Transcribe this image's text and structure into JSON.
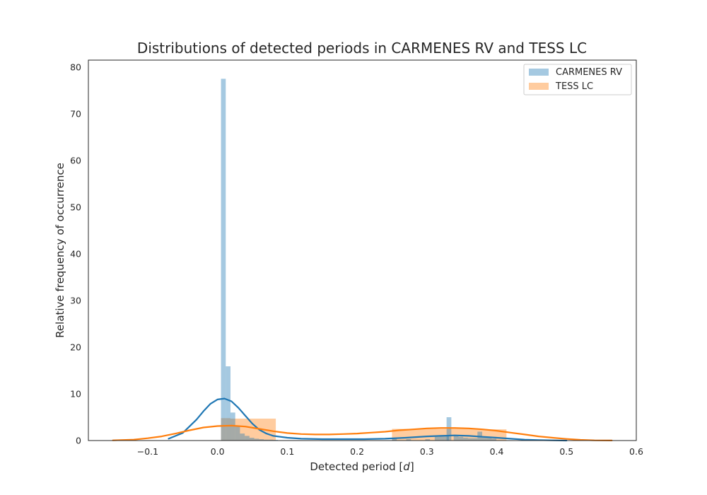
{
  "chart_data": {
    "type": "histogram",
    "title": "Distributions of detected periods in CARMENES RV and TESS LC",
    "xlabel": "Detected period [d]",
    "xlabel_text": "Detected period [",
    "xlabel_var": "d",
    "xlabel_end": "]",
    "ylabel": "Relative frequency of occurrence",
    "xlim": [
      -0.185,
      0.6
    ],
    "ylim": [
      0,
      81.5
    ],
    "xticks": [
      -0.1,
      0.0,
      0.1,
      0.2,
      0.3,
      0.4,
      0.5,
      0.6
    ],
    "xtick_labels": [
      "−0.1",
      "0.0",
      "0.1",
      "0.2",
      "0.3",
      "0.4",
      "0.5",
      "0.6"
    ],
    "yticks": [
      0,
      10,
      20,
      30,
      40,
      50,
      60,
      70,
      80
    ],
    "ytick_labels": [
      "0",
      "10",
      "20",
      "30",
      "40",
      "50",
      "60",
      "70",
      "80"
    ],
    "grid": false,
    "legend_position": "top-right",
    "series": [
      {
        "name": "CARMENES RV",
        "color": "#1f77b4",
        "bin_width": 0.0068,
        "bins": [
          {
            "x0": 0.005,
            "h": 77.5
          },
          {
            "x0": 0.0118,
            "h": 15.9
          },
          {
            "x0": 0.0186,
            "h": 6.0
          },
          {
            "x0": 0.0254,
            "h": 3.0
          },
          {
            "x0": 0.0322,
            "h": 1.5
          },
          {
            "x0": 0.039,
            "h": 1.0
          },
          {
            "x0": 0.0458,
            "h": 0.6
          },
          {
            "x0": 0.0526,
            "h": 0.4
          },
          {
            "x0": 0.0594,
            "h": 0.3
          },
          {
            "x0": 0.0662,
            "h": 0.2
          },
          {
            "x0": 0.073,
            "h": 0.2
          },
          {
            "x0": 0.0798,
            "h": 0.15
          },
          {
            "x0": 0.25,
            "h": 0.4
          },
          {
            "x0": 0.2704,
            "h": 0.3
          },
          {
            "x0": 0.2976,
            "h": 0.3
          },
          {
            "x0": 0.3112,
            "h": 0.8
          },
          {
            "x0": 0.318,
            "h": 1.0
          },
          {
            "x0": 0.3248,
            "h": 1.0
          },
          {
            "x0": 0.3282,
            "h": 5.0
          },
          {
            "x0": 0.3384,
            "h": 1.0
          },
          {
            "x0": 0.3452,
            "h": 0.8
          },
          {
            "x0": 0.352,
            "h": 0.6
          },
          {
            "x0": 0.3588,
            "h": 0.5
          },
          {
            "x0": 0.3656,
            "h": 0.5
          },
          {
            "x0": 0.3724,
            "h": 1.9
          },
          {
            "x0": 0.3792,
            "h": 0.7
          },
          {
            "x0": 0.386,
            "h": 0.6
          },
          {
            "x0": 0.3928,
            "h": 0.4
          }
        ],
        "kde": {
          "x": [
            -0.07,
            -0.05,
            -0.03,
            -0.02,
            -0.01,
            0.0,
            0.01,
            0.02,
            0.03,
            0.04,
            0.05,
            0.06,
            0.07,
            0.08,
            0.09,
            0.1,
            0.12,
            0.15,
            0.18,
            0.21,
            0.24,
            0.27,
            0.3,
            0.32,
            0.34,
            0.36,
            0.38,
            0.4,
            0.42,
            0.44,
            0.46,
            0.48,
            0.5
          ],
          "y": [
            0.4,
            1.6,
            4.5,
            6.3,
            7.9,
            8.8,
            9.0,
            8.4,
            7.0,
            5.3,
            3.6,
            2.3,
            1.5,
            1.0,
            0.8,
            0.6,
            0.4,
            0.3,
            0.3,
            0.3,
            0.4,
            0.6,
            0.9,
            1.0,
            1.1,
            1.0,
            0.8,
            0.6,
            0.4,
            0.2,
            0.1,
            0.05,
            0.0
          ]
        }
      },
      {
        "name": "TESS LC",
        "color": "#ff7f0e",
        "bins": [
          {
            "x0": 0.005,
            "x1": 0.0185,
            "h": 4.8
          },
          {
            "x0": 0.0185,
            "x1": 0.0835,
            "h": 4.7
          },
          {
            "x0": 0.25,
            "x1": 0.332,
            "h": 2.5
          },
          {
            "x0": 0.332,
            "x1": 0.373,
            "h": 2.6
          },
          {
            "x0": 0.373,
            "x1": 0.414,
            "h": 2.4
          }
        ],
        "kde": {
          "x": [
            -0.15,
            -0.12,
            -0.1,
            -0.08,
            -0.06,
            -0.04,
            -0.02,
            0.0,
            0.02,
            0.04,
            0.06,
            0.08,
            0.1,
            0.12,
            0.14,
            0.16,
            0.18,
            0.2,
            0.22,
            0.24,
            0.26,
            0.28,
            0.3,
            0.32,
            0.34,
            0.36,
            0.38,
            0.4,
            0.42,
            0.44,
            0.46,
            0.48,
            0.5,
            0.52,
            0.54,
            0.565
          ],
          "y": [
            0.05,
            0.2,
            0.5,
            0.9,
            1.5,
            2.2,
            2.8,
            3.1,
            3.2,
            3.0,
            2.5,
            2.0,
            1.6,
            1.4,
            1.3,
            1.3,
            1.4,
            1.5,
            1.7,
            1.9,
            2.2,
            2.4,
            2.6,
            2.7,
            2.7,
            2.6,
            2.4,
            2.1,
            1.7,
            1.3,
            0.9,
            0.6,
            0.35,
            0.15,
            0.05,
            0.02
          ]
        }
      }
    ]
  }
}
